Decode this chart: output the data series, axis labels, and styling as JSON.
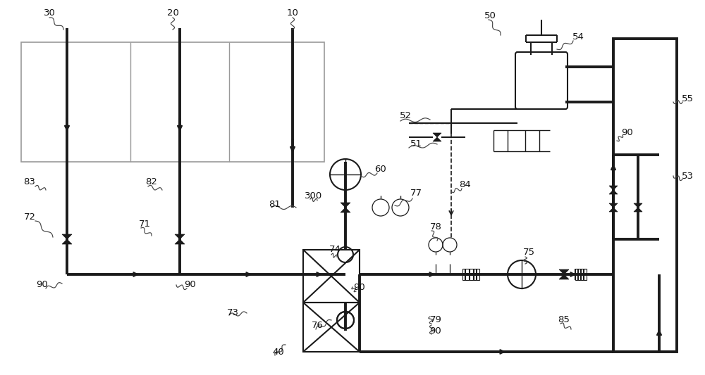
{
  "bg_color": "#ffffff",
  "lc": "#1a1a1a",
  "gc": "#999999",
  "figsize": [
    10.0,
    5.33
  ],
  "dpi": 100,
  "lw_thick": 2.8,
  "lw_mid": 1.5,
  "lw_thin": 1.0
}
